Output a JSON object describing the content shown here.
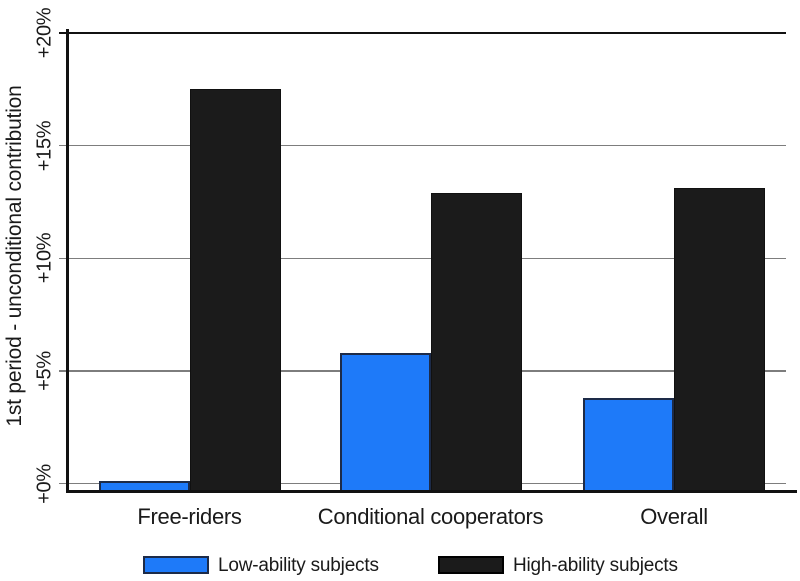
{
  "chart_data": {
    "type": "bar",
    "title": "",
    "ylabel": "1st period - unconditional contribution",
    "xlabel": "",
    "categories": [
      "Free-riders",
      "Conditional cooperators",
      "Overall"
    ],
    "series": [
      {
        "name": "Low-ability subjects",
        "values": [
          0.1,
          5.8,
          3.8
        ],
        "color": "#1E7AF9",
        "border_color": "#1D2B48"
      },
      {
        "name": "High-ability subjects",
        "values": [
          17.5,
          12.9,
          13.1
        ],
        "color": "#1B1B1B",
        "border_color": "#111111"
      }
    ],
    "y_ticks": [
      {
        "value": 0,
        "label": "+0%"
      },
      {
        "value": 5,
        "label": "+5%"
      },
      {
        "value": 10,
        "label": "+10%"
      },
      {
        "value": 15,
        "label": "+15%"
      },
      {
        "value": 20,
        "label": "+20%"
      }
    ],
    "ylim": [
      -0.4,
      20
    ],
    "grid": true,
    "legend_position": "bottom"
  },
  "colors": {
    "background": "#ffffff",
    "grid": "#7d7d7d",
    "top_gridline": "#111111",
    "axis": "#111111",
    "text": "#1a1a1a"
  }
}
